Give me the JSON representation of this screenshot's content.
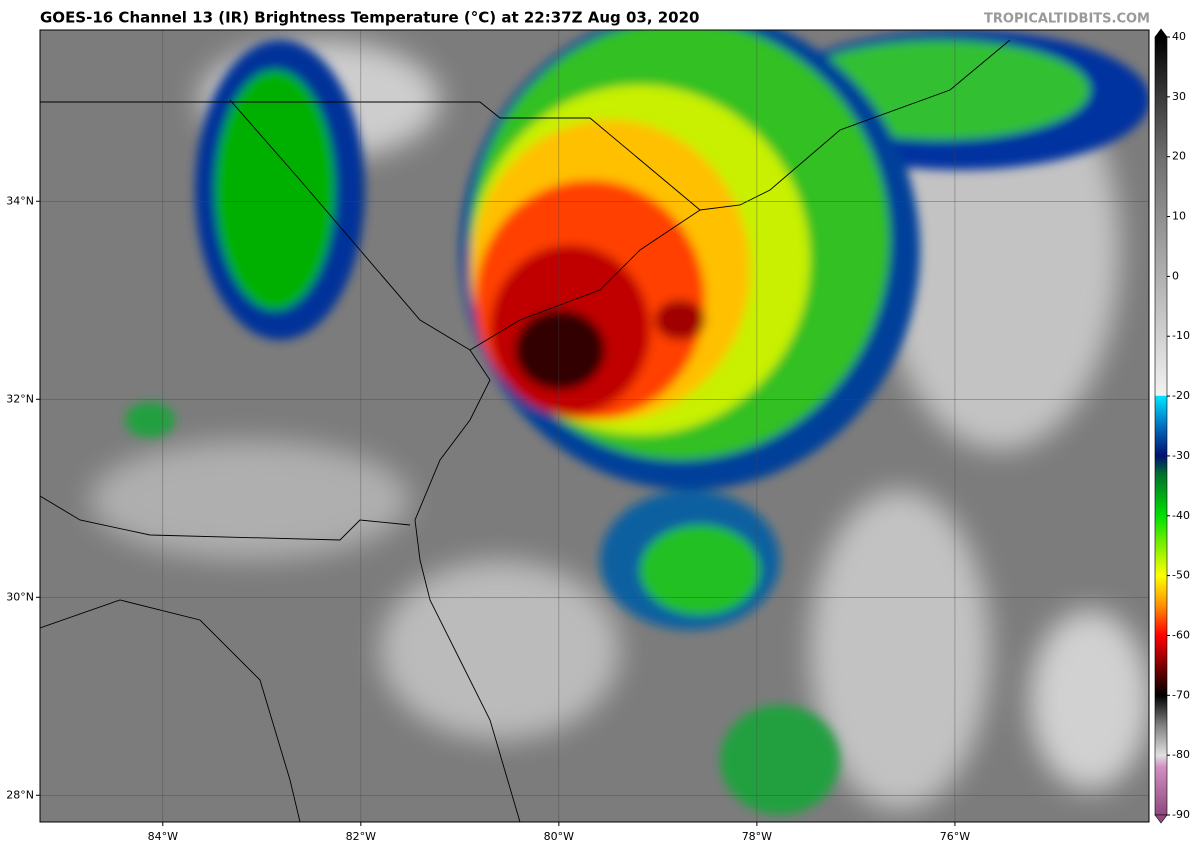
{
  "title": "GOES-16 Channel 13 (IR) Brightness Temperature (°C) at 22:37Z Aug 03, 2020",
  "credit": "TROPICALTIDBITS.COM",
  "map": {
    "xlim": [
      -85.24,
      -74.04
    ],
    "ylim": [
      27.73,
      35.73
    ],
    "xticks": [
      {
        "value": -84,
        "label": "84°W"
      },
      {
        "value": -82,
        "label": "82°W"
      },
      {
        "value": -80,
        "label": "80°W"
      },
      {
        "value": -78,
        "label": "78°W"
      },
      {
        "value": -76,
        "label": "76°W"
      }
    ],
    "yticks": [
      {
        "value": 34,
        "label": "34°N"
      },
      {
        "value": 32,
        "label": "32°N"
      },
      {
        "value": 30,
        "label": "30°N"
      },
      {
        "value": 28,
        "label": "28°N"
      }
    ],
    "grid": true
  },
  "colorbar": {
    "lim": [
      -90,
      40
    ],
    "ticks": [
      40,
      30,
      20,
      10,
      0,
      -10,
      -20,
      -30,
      -40,
      -50,
      -60,
      -70,
      -80,
      -90
    ],
    "colormap": [
      {
        "value": 40,
        "color": "#000000"
      },
      {
        "value": 30,
        "color": "#3a3a3a"
      },
      {
        "value": 20,
        "color": "#6e6e6e"
      },
      {
        "value": 0,
        "color": "#b0b0b0"
      },
      {
        "value": -19.9,
        "color": "#f2f2f2"
      },
      {
        "value": -20,
        "color": "#00e5ff"
      },
      {
        "value": -25,
        "color": "#0070c0"
      },
      {
        "value": -30,
        "color": "#001070"
      },
      {
        "value": -33,
        "color": "#007030"
      },
      {
        "value": -40,
        "color": "#00e000"
      },
      {
        "value": -50,
        "color": "#ffff00"
      },
      {
        "value": -55,
        "color": "#ff9000"
      },
      {
        "value": -60,
        "color": "#ff0000"
      },
      {
        "value": -65,
        "color": "#800000"
      },
      {
        "value": -70,
        "color": "#000000"
      },
      {
        "value": -75,
        "color": "#808080"
      },
      {
        "value": -80,
        "color": "#e0e0e0"
      },
      {
        "value": -82,
        "color": "#d090c0"
      },
      {
        "value": -90,
        "color": "#904880"
      }
    ]
  }
}
